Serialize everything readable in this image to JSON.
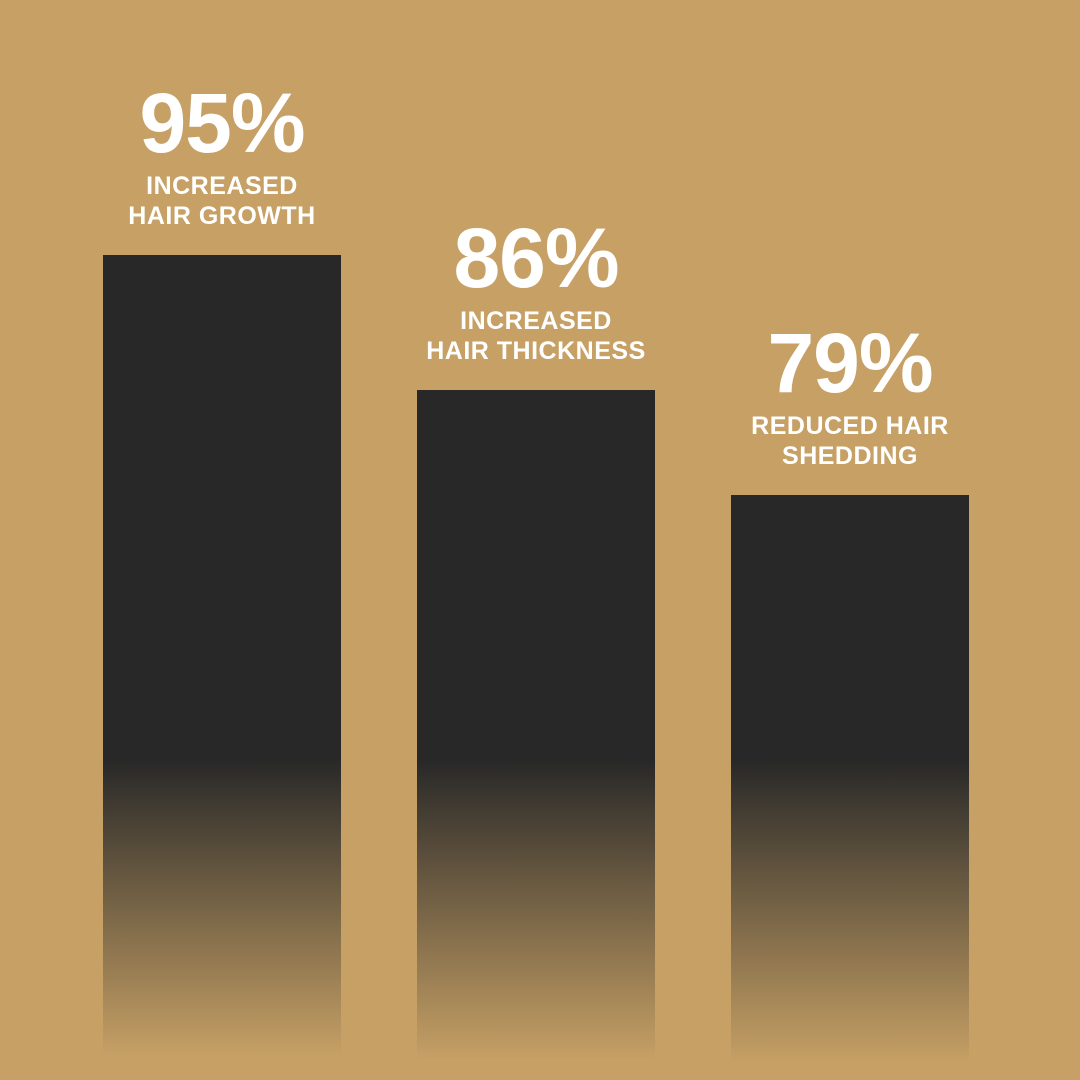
{
  "colors": {
    "background": "#c6a065",
    "bar": "#282828",
    "text": "#ffffff"
  },
  "chart_data": {
    "type": "bar",
    "categories": [
      "INCREASED HAIR GROWTH",
      "INCREASED HAIR THICKNESS",
      "REDUCED HAIR SHEDDING"
    ],
    "values": [
      95,
      86,
      79
    ],
    "value_labels": [
      "95%",
      "86%",
      "79%"
    ],
    "caption_lines": [
      [
        "INCREASED",
        "HAIR GROWTH"
      ],
      [
        "INCREASED",
        "HAIR THICKNESS"
      ],
      [
        "REDUCED HAIR",
        "SHEDDING"
      ]
    ],
    "title": "",
    "xlabel": "",
    "ylabel": "",
    "ylim": [
      40,
      100
    ],
    "grid": false,
    "legend": "none"
  }
}
